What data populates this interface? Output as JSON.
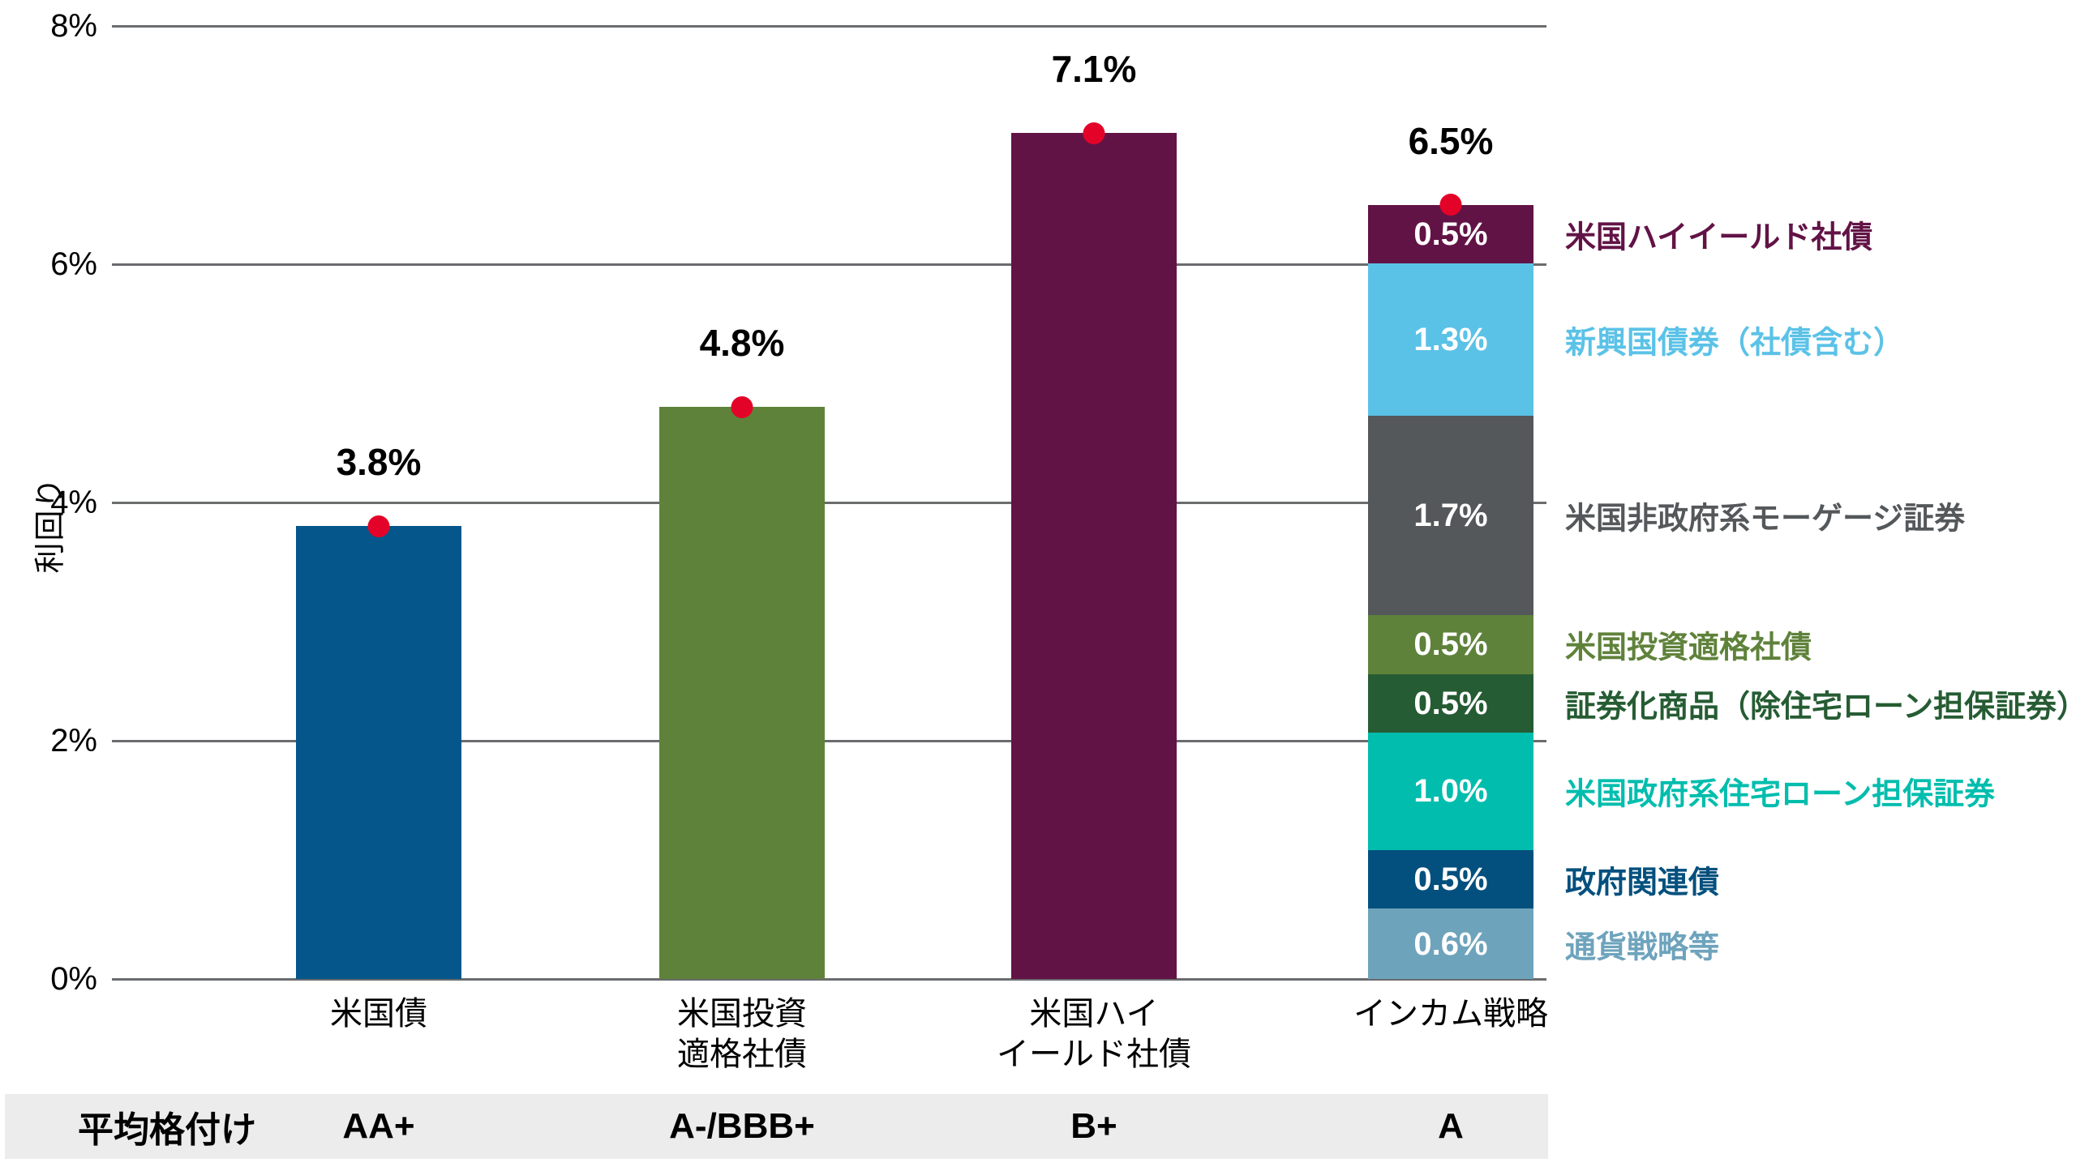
{
  "chart_data": {
    "type": "bar",
    "title": "",
    "ylabel": "利回り",
    "ylim": [
      0,
      8
    ],
    "ytick_labels": [
      "0%",
      "2%",
      "4%",
      "6%",
      "8%"
    ],
    "ytick_values": [
      0,
      2,
      4,
      6,
      8
    ],
    "grid": true,
    "legend_position": "right-of-stacked-bar",
    "marker": {
      "shape": "circle",
      "color": "#E40328"
    },
    "grid_color": "#6A6C6E",
    "rating_band_color": "#ECECEC",
    "categories": [
      "米国債",
      "米国投資適格社債",
      "米国ハイイールド社債",
      "インカム戦略"
    ],
    "ratings": {
      "row_label": "平均格付け",
      "values": [
        "AA+",
        "A-/BBB+",
        "B+",
        "A"
      ]
    },
    "bars": [
      {
        "id": "us-treasuries",
        "category_lines": [
          "米国債"
        ],
        "rating": "AA+",
        "value": 3.8,
        "value_label": "3.8%",
        "color": "#05568A"
      },
      {
        "id": "us-ig-corp",
        "category_lines": [
          "米国投資",
          "適格社債"
        ],
        "rating": "A-/BBB+",
        "value": 4.8,
        "value_label": "4.8%",
        "color": "#5F823B"
      },
      {
        "id": "us-high-yield",
        "category_lines": [
          "米国ハイ",
          "イールド社債"
        ],
        "rating": "B+",
        "value": 7.1,
        "value_label": "7.1%",
        "color": "#621346"
      },
      {
        "id": "income-strategy",
        "category_lines": [
          "インカム戦略"
        ],
        "rating": "A",
        "total_value": 6.5,
        "value_label": "6.5%",
        "segments_top_to_bottom": [
          {
            "id": "us-high-yield-corp",
            "name": "米国ハイイールド社債",
            "value": 0.5,
            "label": "0.5%",
            "color": "#621346"
          },
          {
            "id": "em-bonds-incl-corp",
            "name": "新興国債券（社債含む）",
            "value": 1.3,
            "label": "1.3%",
            "color": "#5BC2E7"
          },
          {
            "id": "us-non-agency-mortgage",
            "name": "米国非政府系モーゲージ証券",
            "value": 1.7,
            "label": "1.7%",
            "color": "#54585A"
          },
          {
            "id": "us-ig-corp-seg",
            "name": "米国投資適格社債",
            "value": 0.5,
            "label": "0.5%",
            "color": "#5F823B"
          },
          {
            "id": "securitized-ex-mbs",
            "name": "証券化商品（除住宅ローン担保証券）",
            "value": 0.5,
            "label": "0.5%",
            "color": "#265C33"
          },
          {
            "id": "us-agency-mbs",
            "name": "米国政府系住宅ローン担保証券",
            "value": 1.0,
            "label": "1.0%",
            "color": "#00BDAD"
          },
          {
            "id": "government-related",
            "name": "政府関連債",
            "value": 0.5,
            "label": "0.5%",
            "color": "#03507E"
          },
          {
            "id": "currency-strategies",
            "name": "通貨戦略等",
            "value": 0.6,
            "label": "0.6%",
            "color": "#6EA3BC"
          }
        ]
      }
    ]
  }
}
